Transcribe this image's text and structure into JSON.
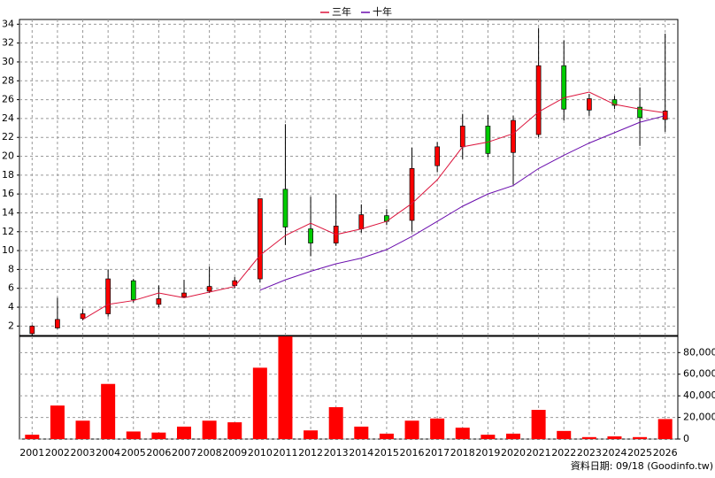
{
  "chart_data": {
    "type": "candlestick",
    "categories": [
      "2001",
      "2002",
      "2003",
      "2004",
      "2005",
      "2006",
      "2007",
      "2008",
      "2009",
      "2010",
      "2011",
      "2012",
      "2013",
      "2014",
      "2015",
      "2016",
      "2017",
      "2018",
      "2019",
      "2020",
      "2021",
      "2022",
      "2023",
      "2024",
      "2025",
      "2026"
    ],
    "open": [
      1.2,
      1.8,
      2.8,
      3.3,
      6.8,
      4.3,
      5.1,
      5.7,
      6.3,
      7.0,
      16.5,
      12.3,
      10.8,
      12.3,
      13.7,
      13.2,
      19.0,
      21.0,
      23.2,
      20.4,
      22.3,
      29.6,
      24.9,
      26.0,
      25.2,
      23.9
    ],
    "high": [
      2.1,
      5.0,
      3.8,
      8.0,
      7.0,
      6.3,
      6.9,
      8.3,
      7.2,
      15.5,
      23.4,
      15.7,
      16.0,
      14.9,
      14.4,
      20.9,
      21.5,
      24.5,
      24.4,
      24.3,
      33.6,
      32.3,
      26.6,
      26.4,
      27.3,
      33.0
    ],
    "low": [
      1.0,
      1.7,
      2.6,
      3.0,
      4.5,
      4.0,
      5.0,
      5.5,
      6.0,
      6.6,
      10.6,
      9.4,
      10.5,
      11.9,
      12.7,
      12.0,
      18.3,
      19.7,
      19.9,
      17.0,
      22.0,
      23.8,
      24.3,
      25.0,
      21.1,
      22.6
    ],
    "close": [
      2.0,
      2.7,
      3.3,
      7.0,
      4.8,
      4.9,
      5.5,
      6.2,
      6.8,
      15.5,
      12.5,
      10.8,
      12.6,
      13.8,
      13.1,
      18.7,
      21.0,
      23.2,
      20.3,
      23.8,
      29.6,
      25.0,
      26.1,
      25.4,
      24.1,
      24.8
    ],
    "up_color": "#ff0000",
    "down_color": "#00cc00",
    "series": [
      {
        "name": "三年",
        "color": "#dc143c",
        "values": [
          null,
          null,
          2.7,
          4.3,
          4.7,
          5.5,
          5.0,
          5.6,
          6.2,
          9.5,
          11.6,
          12.9,
          11.7,
          12.3,
          13.1,
          15.0,
          17.5,
          21.0,
          21.5,
          22.4,
          24.7,
          26.2,
          26.8,
          25.5,
          25.0,
          24.6
        ]
      },
      {
        "name": "十年",
        "color": "#6a0dad",
        "values": [
          null,
          null,
          null,
          null,
          null,
          null,
          null,
          null,
          null,
          5.8,
          6.9,
          7.8,
          8.6,
          9.2,
          10.1,
          11.5,
          13.1,
          14.7,
          16.0,
          16.9,
          18.7,
          20.1,
          21.4,
          22.5,
          23.6,
          24.3
        ]
      }
    ],
    "ylim": [
      1,
      34.5
    ],
    "yticks": [
      2,
      4,
      6,
      8,
      10,
      12,
      14,
      16,
      18,
      20,
      22,
      24,
      26,
      28,
      30,
      32,
      34
    ],
    "grid": true,
    "legend": "top",
    "volume": {
      "type": "bar",
      "color": "#ff0000",
      "values": [
        4000,
        31000,
        17000,
        51000,
        7000,
        6000,
        11500,
        17000,
        15500,
        66000,
        95000,
        8000,
        29500,
        11500,
        5000,
        17000,
        19000,
        10500,
        4000,
        5000,
        27000,
        7500,
        1800,
        2500,
        1800,
        18500
      ],
      "ylim": [
        0,
        95000
      ],
      "yticks": [
        0,
        {
          "value": 20000,
          "label": "20,000"
        },
        {
          "value": 40000,
          "label": "40,000"
        },
        {
          "value": 60000,
          "label": "60,000"
        },
        {
          "value": 80000,
          "label": "80,000"
        }
      ]
    },
    "note": "資料日期: 09/18 (Goodinfo.tw)"
  }
}
